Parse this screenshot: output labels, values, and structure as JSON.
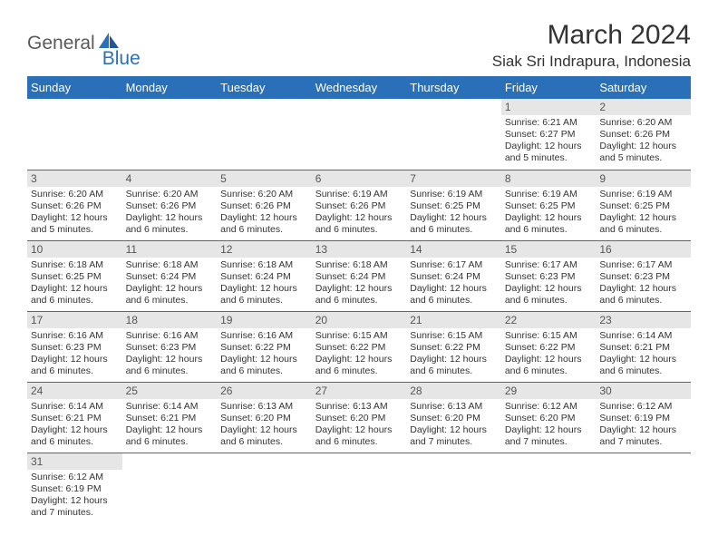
{
  "logo": {
    "general": "General",
    "blue": "Blue"
  },
  "title": "March 2024",
  "location": "Siak Sri Indrapura, Indonesia",
  "headers": [
    "Sunday",
    "Monday",
    "Tuesday",
    "Wednesday",
    "Thursday",
    "Friday",
    "Saturday"
  ],
  "colors": {
    "header_bg": "#2970b8",
    "header_text": "#ffffff",
    "daynum_bg": "#e6e6e6",
    "row_border": "#2970b8",
    "body_text": "#333333",
    "logo_gray": "#5a5a5a",
    "logo_blue": "#2970b8"
  },
  "weeks": [
    [
      {
        "n": "",
        "sr": "",
        "ss": "",
        "dl": ""
      },
      {
        "n": "",
        "sr": "",
        "ss": "",
        "dl": ""
      },
      {
        "n": "",
        "sr": "",
        "ss": "",
        "dl": ""
      },
      {
        "n": "",
        "sr": "",
        "ss": "",
        "dl": ""
      },
      {
        "n": "",
        "sr": "",
        "ss": "",
        "dl": ""
      },
      {
        "n": "1",
        "sr": "Sunrise: 6:21 AM",
        "ss": "Sunset: 6:27 PM",
        "dl": "Daylight: 12 hours and 5 minutes."
      },
      {
        "n": "2",
        "sr": "Sunrise: 6:20 AM",
        "ss": "Sunset: 6:26 PM",
        "dl": "Daylight: 12 hours and 5 minutes."
      }
    ],
    [
      {
        "n": "3",
        "sr": "Sunrise: 6:20 AM",
        "ss": "Sunset: 6:26 PM",
        "dl": "Daylight: 12 hours and 5 minutes."
      },
      {
        "n": "4",
        "sr": "Sunrise: 6:20 AM",
        "ss": "Sunset: 6:26 PM",
        "dl": "Daylight: 12 hours and 6 minutes."
      },
      {
        "n": "5",
        "sr": "Sunrise: 6:20 AM",
        "ss": "Sunset: 6:26 PM",
        "dl": "Daylight: 12 hours and 6 minutes."
      },
      {
        "n": "6",
        "sr": "Sunrise: 6:19 AM",
        "ss": "Sunset: 6:26 PM",
        "dl": "Daylight: 12 hours and 6 minutes."
      },
      {
        "n": "7",
        "sr": "Sunrise: 6:19 AM",
        "ss": "Sunset: 6:25 PM",
        "dl": "Daylight: 12 hours and 6 minutes."
      },
      {
        "n": "8",
        "sr": "Sunrise: 6:19 AM",
        "ss": "Sunset: 6:25 PM",
        "dl": "Daylight: 12 hours and 6 minutes."
      },
      {
        "n": "9",
        "sr": "Sunrise: 6:19 AM",
        "ss": "Sunset: 6:25 PM",
        "dl": "Daylight: 12 hours and 6 minutes."
      }
    ],
    [
      {
        "n": "10",
        "sr": "Sunrise: 6:18 AM",
        "ss": "Sunset: 6:25 PM",
        "dl": "Daylight: 12 hours and 6 minutes."
      },
      {
        "n": "11",
        "sr": "Sunrise: 6:18 AM",
        "ss": "Sunset: 6:24 PM",
        "dl": "Daylight: 12 hours and 6 minutes."
      },
      {
        "n": "12",
        "sr": "Sunrise: 6:18 AM",
        "ss": "Sunset: 6:24 PM",
        "dl": "Daylight: 12 hours and 6 minutes."
      },
      {
        "n": "13",
        "sr": "Sunrise: 6:18 AM",
        "ss": "Sunset: 6:24 PM",
        "dl": "Daylight: 12 hours and 6 minutes."
      },
      {
        "n": "14",
        "sr": "Sunrise: 6:17 AM",
        "ss": "Sunset: 6:24 PM",
        "dl": "Daylight: 12 hours and 6 minutes."
      },
      {
        "n": "15",
        "sr": "Sunrise: 6:17 AM",
        "ss": "Sunset: 6:23 PM",
        "dl": "Daylight: 12 hours and 6 minutes."
      },
      {
        "n": "16",
        "sr": "Sunrise: 6:17 AM",
        "ss": "Sunset: 6:23 PM",
        "dl": "Daylight: 12 hours and 6 minutes."
      }
    ],
    [
      {
        "n": "17",
        "sr": "Sunrise: 6:16 AM",
        "ss": "Sunset: 6:23 PM",
        "dl": "Daylight: 12 hours and 6 minutes."
      },
      {
        "n": "18",
        "sr": "Sunrise: 6:16 AM",
        "ss": "Sunset: 6:23 PM",
        "dl": "Daylight: 12 hours and 6 minutes."
      },
      {
        "n": "19",
        "sr": "Sunrise: 6:16 AM",
        "ss": "Sunset: 6:22 PM",
        "dl": "Daylight: 12 hours and 6 minutes."
      },
      {
        "n": "20",
        "sr": "Sunrise: 6:15 AM",
        "ss": "Sunset: 6:22 PM",
        "dl": "Daylight: 12 hours and 6 minutes."
      },
      {
        "n": "21",
        "sr": "Sunrise: 6:15 AM",
        "ss": "Sunset: 6:22 PM",
        "dl": "Daylight: 12 hours and 6 minutes."
      },
      {
        "n": "22",
        "sr": "Sunrise: 6:15 AM",
        "ss": "Sunset: 6:22 PM",
        "dl": "Daylight: 12 hours and 6 minutes."
      },
      {
        "n": "23",
        "sr": "Sunrise: 6:14 AM",
        "ss": "Sunset: 6:21 PM",
        "dl": "Daylight: 12 hours and 6 minutes."
      }
    ],
    [
      {
        "n": "24",
        "sr": "Sunrise: 6:14 AM",
        "ss": "Sunset: 6:21 PM",
        "dl": "Daylight: 12 hours and 6 minutes."
      },
      {
        "n": "25",
        "sr": "Sunrise: 6:14 AM",
        "ss": "Sunset: 6:21 PM",
        "dl": "Daylight: 12 hours and 6 minutes."
      },
      {
        "n": "26",
        "sr": "Sunrise: 6:13 AM",
        "ss": "Sunset: 6:20 PM",
        "dl": "Daylight: 12 hours and 6 minutes."
      },
      {
        "n": "27",
        "sr": "Sunrise: 6:13 AM",
        "ss": "Sunset: 6:20 PM",
        "dl": "Daylight: 12 hours and 6 minutes."
      },
      {
        "n": "28",
        "sr": "Sunrise: 6:13 AM",
        "ss": "Sunset: 6:20 PM",
        "dl": "Daylight: 12 hours and 7 minutes."
      },
      {
        "n": "29",
        "sr": "Sunrise: 6:12 AM",
        "ss": "Sunset: 6:20 PM",
        "dl": "Daylight: 12 hours and 7 minutes."
      },
      {
        "n": "30",
        "sr": "Sunrise: 6:12 AM",
        "ss": "Sunset: 6:19 PM",
        "dl": "Daylight: 12 hours and 7 minutes."
      }
    ],
    [
      {
        "n": "31",
        "sr": "Sunrise: 6:12 AM",
        "ss": "Sunset: 6:19 PM",
        "dl": "Daylight: 12 hours and 7 minutes."
      },
      {
        "n": "",
        "sr": "",
        "ss": "",
        "dl": ""
      },
      {
        "n": "",
        "sr": "",
        "ss": "",
        "dl": ""
      },
      {
        "n": "",
        "sr": "",
        "ss": "",
        "dl": ""
      },
      {
        "n": "",
        "sr": "",
        "ss": "",
        "dl": ""
      },
      {
        "n": "",
        "sr": "",
        "ss": "",
        "dl": ""
      },
      {
        "n": "",
        "sr": "",
        "ss": "",
        "dl": ""
      }
    ]
  ]
}
